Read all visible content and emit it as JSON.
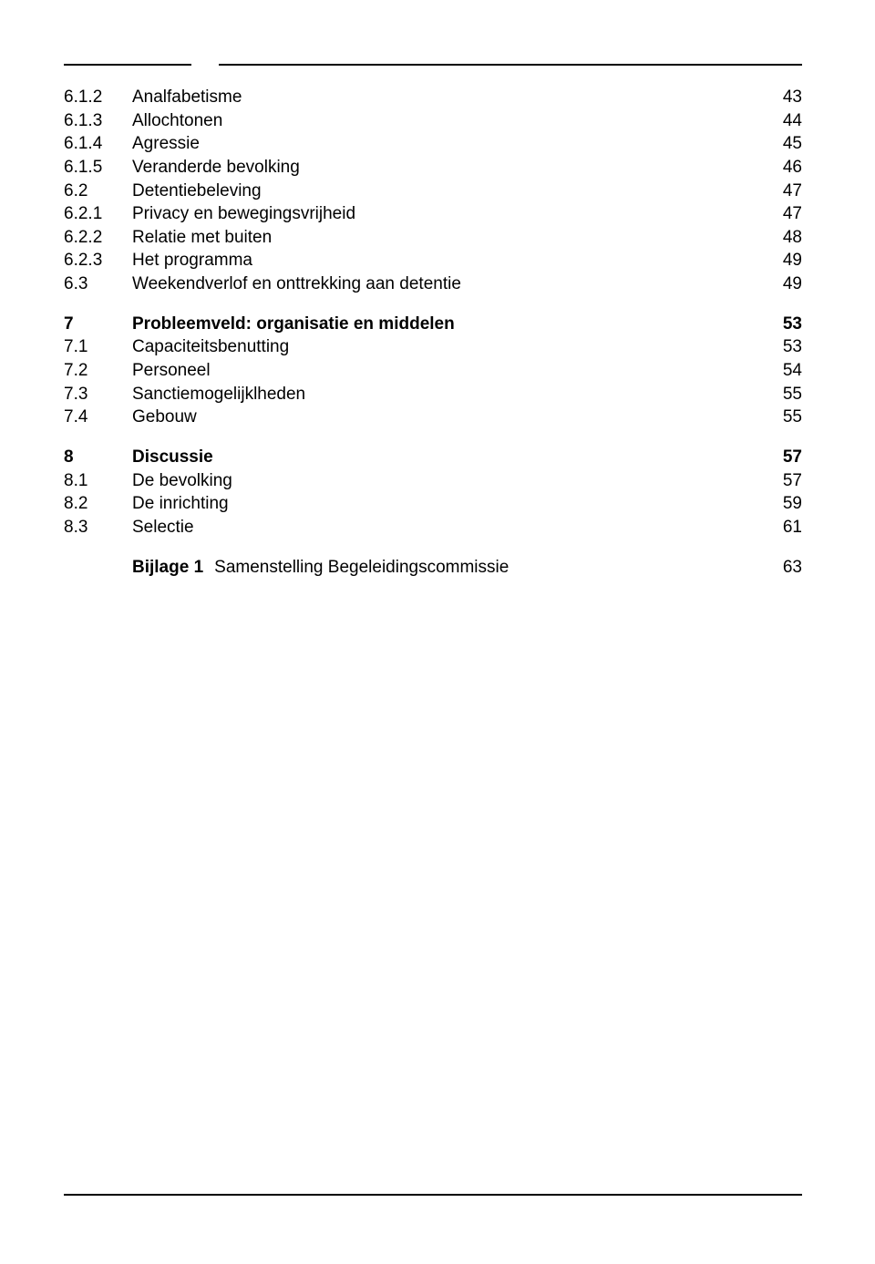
{
  "toc": {
    "blocks": [
      {
        "rows": [
          {
            "num": "6.1.2",
            "title": "Analfabetisme",
            "page": "43",
            "bold": false
          },
          {
            "num": "6.1.3",
            "title": "Allochtonen",
            "page": "44",
            "bold": false
          },
          {
            "num": "6.1.4",
            "title": "Agressie",
            "page": "45",
            "bold": false
          },
          {
            "num": "6.1.5",
            "title": "Veranderde bevolking",
            "page": "46",
            "bold": false
          },
          {
            "num": "6.2",
            "title": "Detentiebeleving",
            "page": "47",
            "bold": false
          },
          {
            "num": "6.2.1",
            "title": "Privacy en bewegingsvrijheid",
            "page": "47",
            "bold": false
          },
          {
            "num": "6.2.2",
            "title": "Relatie met buiten",
            "page": "48",
            "bold": false
          },
          {
            "num": "6.2.3",
            "title": "Het programma",
            "page": "49",
            "bold": false
          },
          {
            "num": "6.3",
            "title": "Weekendverlof en onttrekking aan detentie",
            "page": "49",
            "bold": false
          }
        ]
      },
      {
        "rows": [
          {
            "num": "7",
            "title": "Probleemveld: organisatie en middelen",
            "page": "53",
            "bold": true
          },
          {
            "num": "7.1",
            "title": "Capaciteitsbenutting",
            "page": "53",
            "bold": false
          },
          {
            "num": "7.2",
            "title": "Personeel",
            "page": "54",
            "bold": false
          },
          {
            "num": "7.3",
            "title": "Sanctiemogelijklheden",
            "page": "55",
            "bold": false
          },
          {
            "num": "7.4",
            "title": "Gebouw",
            "page": "55",
            "bold": false
          }
        ]
      },
      {
        "rows": [
          {
            "num": "8",
            "title": "Discussie",
            "page": "57",
            "bold": true
          },
          {
            "num": "8.1",
            "title": "De bevolking",
            "page": "57",
            "bold": false
          },
          {
            "num": "8.2",
            "title": "De inrichting",
            "page": "59",
            "bold": false
          },
          {
            "num": "8.3",
            "title": "Selectie",
            "page": "61",
            "bold": false
          }
        ]
      }
    ],
    "annex": {
      "label": "Bijlage 1",
      "title": "Samenstelling Begeleidingscommissie",
      "page": "63"
    }
  }
}
